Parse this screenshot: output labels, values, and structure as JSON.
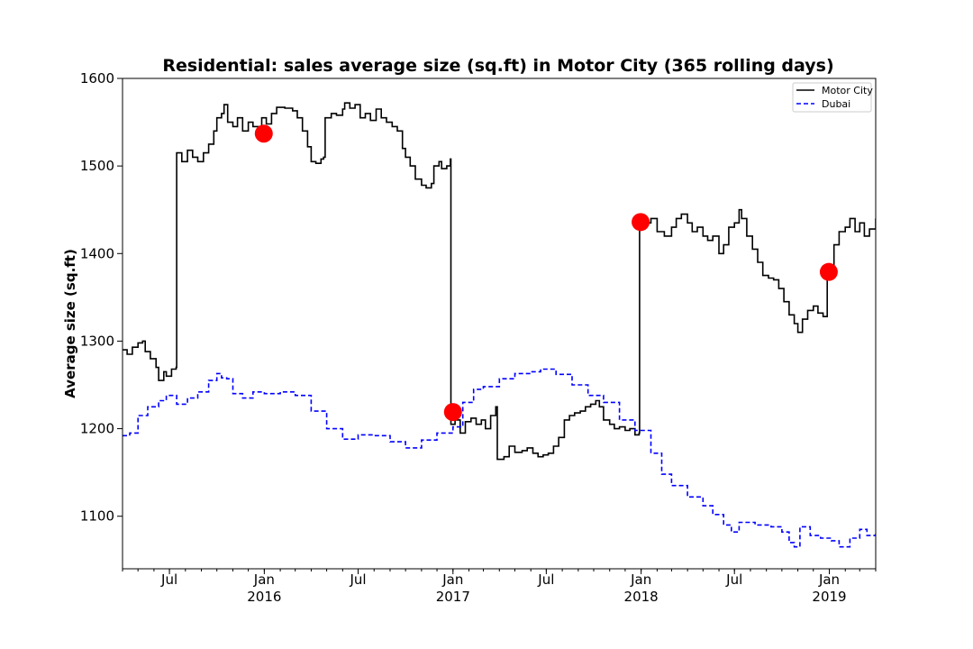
{
  "chart_data": {
    "type": "line",
    "title": "Residential: sales average size (sq.ft) in Motor City (365 rolling days)",
    "xlabel": "",
    "ylabel": "Average size (sq.ft)",
    "xlim": [
      "2015-04-01",
      "2019-04-01"
    ],
    "ylim": [
      1040,
      1600
    ],
    "y_ticks": [
      1100,
      1200,
      1300,
      1400,
      1500,
      1600
    ],
    "x_ticks": [
      {
        "date": "2015-07-01",
        "label": "Jul",
        "year": ""
      },
      {
        "date": "2016-01-01",
        "label": "Jan",
        "year": "2016"
      },
      {
        "date": "2016-07-01",
        "label": "Jul",
        "year": ""
      },
      {
        "date": "2017-01-01",
        "label": "Jan",
        "year": "2017"
      },
      {
        "date": "2017-07-01",
        "label": "Jul",
        "year": ""
      },
      {
        "date": "2018-01-01",
        "label": "Jan",
        "year": "2018"
      },
      {
        "date": "2018-07-01",
        "label": "Jul",
        "year": ""
      },
      {
        "date": "2019-01-01",
        "label": "Jan",
        "year": "2019"
      }
    ],
    "grid": false,
    "legend_position": "top-right",
    "series": [
      {
        "name": "Motor City",
        "color": "#000000",
        "style": "solid",
        "points": [
          [
            "2015-04-01",
            1290
          ],
          [
            "2015-04-10",
            1285
          ],
          [
            "2015-04-20",
            1293
          ],
          [
            "2015-05-01",
            1298
          ],
          [
            "2015-05-10",
            1300
          ],
          [
            "2015-05-15",
            1288
          ],
          [
            "2015-05-25",
            1280
          ],
          [
            "2015-06-05",
            1270
          ],
          [
            "2015-06-10",
            1255
          ],
          [
            "2015-06-20",
            1265
          ],
          [
            "2015-06-25",
            1260
          ],
          [
            "2015-07-05",
            1268
          ],
          [
            "2015-07-14",
            1270
          ],
          [
            "2015-07-15",
            1515
          ],
          [
            "2015-07-25",
            1505
          ],
          [
            "2015-08-05",
            1518
          ],
          [
            "2015-08-15",
            1510
          ],
          [
            "2015-08-25",
            1505
          ],
          [
            "2015-09-05",
            1515
          ],
          [
            "2015-09-15",
            1525
          ],
          [
            "2015-09-25",
            1540
          ],
          [
            "2015-10-01",
            1555
          ],
          [
            "2015-10-10",
            1560
          ],
          [
            "2015-10-15",
            1570
          ],
          [
            "2015-10-22",
            1550
          ],
          [
            "2015-11-01",
            1545
          ],
          [
            "2015-11-10",
            1555
          ],
          [
            "2015-11-20",
            1540
          ],
          [
            "2015-12-01",
            1550
          ],
          [
            "2015-12-10",
            1545
          ],
          [
            "2015-12-20",
            1540
          ],
          [
            "2015-12-27",
            1555
          ],
          [
            "2016-01-05",
            1548
          ],
          [
            "2016-01-15",
            1560
          ],
          [
            "2016-01-25",
            1567
          ],
          [
            "2016-02-10",
            1566
          ],
          [
            "2016-02-25",
            1563
          ],
          [
            "2016-03-05",
            1555
          ],
          [
            "2016-03-15",
            1540
          ],
          [
            "2016-03-25",
            1522
          ],
          [
            "2016-04-01",
            1505
          ],
          [
            "2016-04-10",
            1503
          ],
          [
            "2016-04-20",
            1508
          ],
          [
            "2016-04-25",
            1510
          ],
          [
            "2016-04-28",
            1555
          ],
          [
            "2016-05-10",
            1560
          ],
          [
            "2016-05-20",
            1558
          ],
          [
            "2016-06-01",
            1565
          ],
          [
            "2016-06-05",
            1572
          ],
          [
            "2016-06-15",
            1566
          ],
          [
            "2016-06-25",
            1570
          ],
          [
            "2016-07-05",
            1555
          ],
          [
            "2016-07-15",
            1560
          ],
          [
            "2016-07-25",
            1552
          ],
          [
            "2016-08-05",
            1565
          ],
          [
            "2016-08-15",
            1555
          ],
          [
            "2016-08-25",
            1550
          ],
          [
            "2016-09-05",
            1545
          ],
          [
            "2016-09-15",
            1540
          ],
          [
            "2016-09-25",
            1520
          ],
          [
            "2016-10-01",
            1510
          ],
          [
            "2016-10-10",
            1500
          ],
          [
            "2016-10-20",
            1485
          ],
          [
            "2016-11-01",
            1478
          ],
          [
            "2016-11-10",
            1475
          ],
          [
            "2016-11-20",
            1480
          ],
          [
            "2016-11-25",
            1500
          ],
          [
            "2016-12-05",
            1505
          ],
          [
            "2016-12-10",
            1497
          ],
          [
            "2016-12-20",
            1500
          ],
          [
            "2016-12-27",
            1508
          ],
          [
            "2016-12-28",
            1205
          ],
          [
            "2017-01-05",
            1210
          ],
          [
            "2017-01-15",
            1195
          ],
          [
            "2017-01-25",
            1208
          ],
          [
            "2017-02-05",
            1212
          ],
          [
            "2017-02-15",
            1205
          ],
          [
            "2017-02-25",
            1210
          ],
          [
            "2017-03-05",
            1200
          ],
          [
            "2017-03-15",
            1215
          ],
          [
            "2017-03-25",
            1225
          ],
          [
            "2017-03-28",
            1165
          ],
          [
            "2017-04-10",
            1168
          ],
          [
            "2017-04-20",
            1180
          ],
          [
            "2017-05-01",
            1173
          ],
          [
            "2017-05-15",
            1175
          ],
          [
            "2017-05-25",
            1178
          ],
          [
            "2017-06-05",
            1172
          ],
          [
            "2017-06-15",
            1168
          ],
          [
            "2017-06-25",
            1170
          ],
          [
            "2017-07-05",
            1172
          ],
          [
            "2017-07-15",
            1180
          ],
          [
            "2017-07-25",
            1190
          ],
          [
            "2017-08-05",
            1210
          ],
          [
            "2017-08-15",
            1215
          ],
          [
            "2017-08-25",
            1218
          ],
          [
            "2017-09-05",
            1220
          ],
          [
            "2017-09-15",
            1225
          ],
          [
            "2017-09-25",
            1228
          ],
          [
            "2017-10-05",
            1232
          ],
          [
            "2017-10-12",
            1225
          ],
          [
            "2017-10-20",
            1210
          ],
          [
            "2017-11-01",
            1205
          ],
          [
            "2017-11-10",
            1200
          ],
          [
            "2017-11-20",
            1202
          ],
          [
            "2017-12-01",
            1198
          ],
          [
            "2017-12-10",
            1200
          ],
          [
            "2017-12-20",
            1193
          ],
          [
            "2017-12-28",
            1195
          ],
          [
            "2017-12-29",
            1430
          ],
          [
            "2018-01-10",
            1435
          ],
          [
            "2018-01-20",
            1440
          ],
          [
            "2018-02-01",
            1425
          ],
          [
            "2018-02-15",
            1420
          ],
          [
            "2018-03-01",
            1430
          ],
          [
            "2018-03-10",
            1440
          ],
          [
            "2018-03-20",
            1445
          ],
          [
            "2018-04-01",
            1435
          ],
          [
            "2018-04-10",
            1425
          ],
          [
            "2018-04-20",
            1430
          ],
          [
            "2018-05-01",
            1420
          ],
          [
            "2018-05-10",
            1415
          ],
          [
            "2018-05-20",
            1420
          ],
          [
            "2018-06-01",
            1400
          ],
          [
            "2018-06-10",
            1410
          ],
          [
            "2018-06-20",
            1430
          ],
          [
            "2018-07-01",
            1435
          ],
          [
            "2018-07-10",
            1450
          ],
          [
            "2018-07-15",
            1440
          ],
          [
            "2018-07-25",
            1420
          ],
          [
            "2018-08-05",
            1405
          ],
          [
            "2018-08-15",
            1390
          ],
          [
            "2018-08-25",
            1375
          ],
          [
            "2018-09-05",
            1372
          ],
          [
            "2018-09-15",
            1370
          ],
          [
            "2018-09-25",
            1360
          ],
          [
            "2018-10-05",
            1345
          ],
          [
            "2018-10-15",
            1330
          ],
          [
            "2018-10-25",
            1320
          ],
          [
            "2018-11-01",
            1310
          ],
          [
            "2018-11-10",
            1325
          ],
          [
            "2018-11-20",
            1335
          ],
          [
            "2018-12-01",
            1340
          ],
          [
            "2018-12-10",
            1332
          ],
          [
            "2018-12-20",
            1328
          ],
          [
            "2018-12-28",
            1380
          ],
          [
            "2019-01-10",
            1410
          ],
          [
            "2019-01-20",
            1425
          ],
          [
            "2019-02-01",
            1430
          ],
          [
            "2019-02-10",
            1440
          ],
          [
            "2019-02-20",
            1425
          ],
          [
            "2019-03-01",
            1435
          ],
          [
            "2019-03-10",
            1420
          ],
          [
            "2019-03-20",
            1428
          ],
          [
            "2019-04-01",
            1440
          ]
        ]
      },
      {
        "name": "Dubai",
        "color": "#0000ff",
        "style": "dashed",
        "points": [
          [
            "2015-04-01",
            1192
          ],
          [
            "2015-04-15",
            1195
          ],
          [
            "2015-05-01",
            1215
          ],
          [
            "2015-05-20",
            1225
          ],
          [
            "2015-06-10",
            1232
          ],
          [
            "2015-06-25",
            1238
          ],
          [
            "2015-07-15",
            1228
          ],
          [
            "2015-08-05",
            1235
          ],
          [
            "2015-08-25",
            1242
          ],
          [
            "2015-09-15",
            1255
          ],
          [
            "2015-10-01",
            1263
          ],
          [
            "2015-10-10",
            1258
          ],
          [
            "2015-10-20",
            1257
          ],
          [
            "2015-11-01",
            1240
          ],
          [
            "2015-11-20",
            1235
          ],
          [
            "2015-12-10",
            1242
          ],
          [
            "2016-01-01",
            1240
          ],
          [
            "2016-02-01",
            1242
          ],
          [
            "2016-03-01",
            1238
          ],
          [
            "2016-04-01",
            1220
          ],
          [
            "2016-05-01",
            1200
          ],
          [
            "2016-06-01",
            1188
          ],
          [
            "2016-07-01",
            1193
          ],
          [
            "2016-08-01",
            1192
          ],
          [
            "2016-09-01",
            1185
          ],
          [
            "2016-10-01",
            1178
          ],
          [
            "2016-11-01",
            1187
          ],
          [
            "2016-12-01",
            1195
          ],
          [
            "2017-01-01",
            1202
          ],
          [
            "2017-01-20",
            1230
          ],
          [
            "2017-02-10",
            1245
          ],
          [
            "2017-03-01",
            1248
          ],
          [
            "2017-04-01",
            1257
          ],
          [
            "2017-05-01",
            1263
          ],
          [
            "2017-06-01",
            1265
          ],
          [
            "2017-06-20",
            1268
          ],
          [
            "2017-07-20",
            1262
          ],
          [
            "2017-08-20",
            1250
          ],
          [
            "2017-09-20",
            1238
          ],
          [
            "2017-10-20",
            1230
          ],
          [
            "2017-11-20",
            1210
          ],
          [
            "2017-12-20",
            1198
          ],
          [
            "2018-01-20",
            1172
          ],
          [
            "2018-02-10",
            1148
          ],
          [
            "2018-03-01",
            1135
          ],
          [
            "2018-04-01",
            1122
          ],
          [
            "2018-05-01",
            1112
          ],
          [
            "2018-05-20",
            1102
          ],
          [
            "2018-06-10",
            1090
          ],
          [
            "2018-06-25",
            1082
          ],
          [
            "2018-07-10",
            1093
          ],
          [
            "2018-08-10",
            1090
          ],
          [
            "2018-09-10",
            1088
          ],
          [
            "2018-10-01",
            1082
          ],
          [
            "2018-10-15",
            1070
          ],
          [
            "2018-10-25",
            1065
          ],
          [
            "2018-11-05",
            1088
          ],
          [
            "2018-11-25",
            1078
          ],
          [
            "2018-12-15",
            1075
          ],
          [
            "2019-01-05",
            1072
          ],
          [
            "2019-01-20",
            1065
          ],
          [
            "2019-02-10",
            1075
          ],
          [
            "2019-03-01",
            1085
          ],
          [
            "2019-03-15",
            1078
          ],
          [
            "2019-04-01",
            1080
          ]
        ]
      }
    ],
    "markers": {
      "color": "#ff0000",
      "points": [
        [
          "2015-12-31",
          1537
        ],
        [
          "2017-01-01",
          1219
        ],
        [
          "2017-12-31",
          1436
        ],
        [
          "2018-12-31",
          1379
        ]
      ]
    }
  }
}
